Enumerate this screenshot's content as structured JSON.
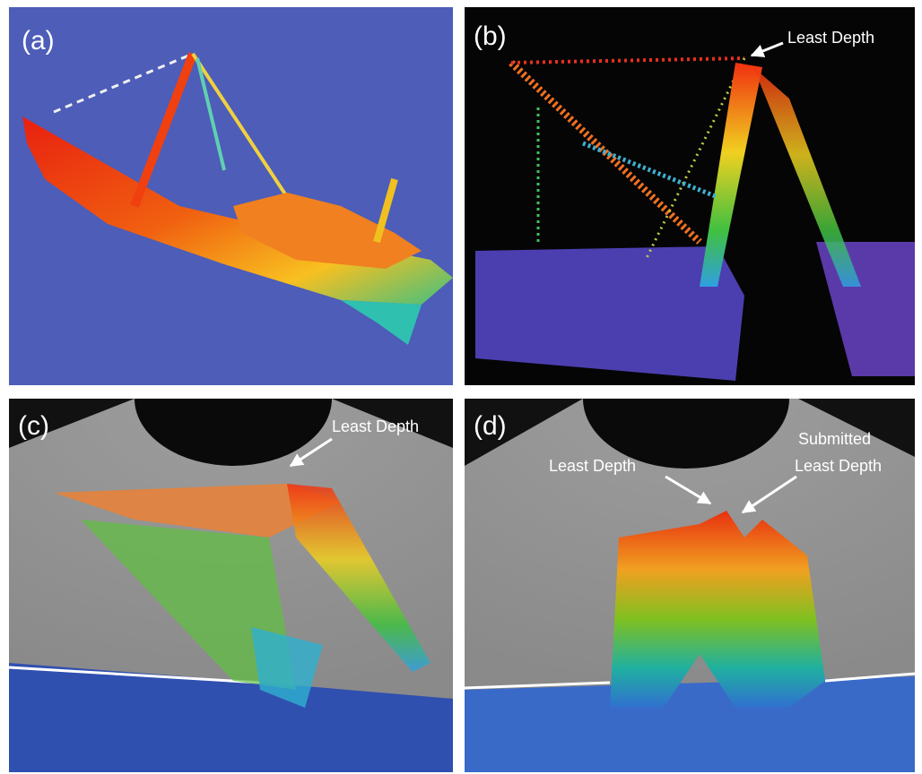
{
  "panels": [
    {
      "label": "(a)"
    },
    {
      "label": "(b)",
      "annotations": [
        {
          "lines": [
            "Least Depth"
          ]
        }
      ]
    },
    {
      "label": "(c)",
      "annotations": [
        {
          "lines": [
            "Least Depth"
          ]
        }
      ]
    },
    {
      "label": "(d)",
      "annotations": [
        {
          "lines": [
            "Least Depth"
          ]
        },
        {
          "lines": [
            "Submitted",
            "Least Depth"
          ]
        }
      ]
    }
  ]
}
